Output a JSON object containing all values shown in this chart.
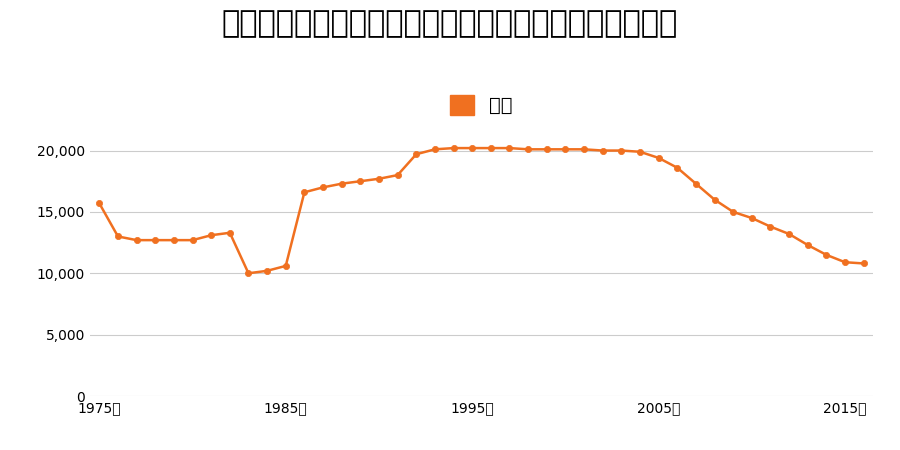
{
  "title": "青森県八戸市小中野北３丁目１番３ほか１筆の地価推移",
  "legend_label": "価格",
  "line_color": "#f07020",
  "marker_color": "#f07020",
  "background_color": "#ffffff",
  "years": [
    1975,
    1976,
    1977,
    1978,
    1979,
    1980,
    1981,
    1982,
    1983,
    1984,
    1985,
    1986,
    1987,
    1988,
    1989,
    1990,
    1991,
    1992,
    1993,
    1994,
    1995,
    1996,
    1997,
    1998,
    1999,
    2000,
    2001,
    2002,
    2003,
    2004,
    2005,
    2006,
    2007,
    2008,
    2009,
    2010,
    2011,
    2012,
    2013,
    2014,
    2015,
    2016
  ],
  "values": [
    15700,
    13000,
    12700,
    12700,
    12700,
    12700,
    13100,
    13300,
    10000,
    10200,
    10600,
    16600,
    17000,
    17300,
    17500,
    17700,
    18000,
    19700,
    20100,
    20200,
    20200,
    20200,
    20200,
    20100,
    20100,
    20100,
    20100,
    20000,
    20000,
    19900,
    19400,
    18600,
    17300,
    16000,
    15000,
    14500,
    13800,
    13200,
    12300,
    11500,
    10900,
    10800
  ],
  "ylim": [
    0,
    22000
  ],
  "yticks": [
    0,
    5000,
    10000,
    15000,
    20000
  ],
  "xticks": [
    1975,
    1985,
    1995,
    2005,
    2015
  ],
  "xlabel_suffix": "年",
  "title_fontsize": 22,
  "tick_fontsize": 13,
  "legend_fontsize": 14
}
